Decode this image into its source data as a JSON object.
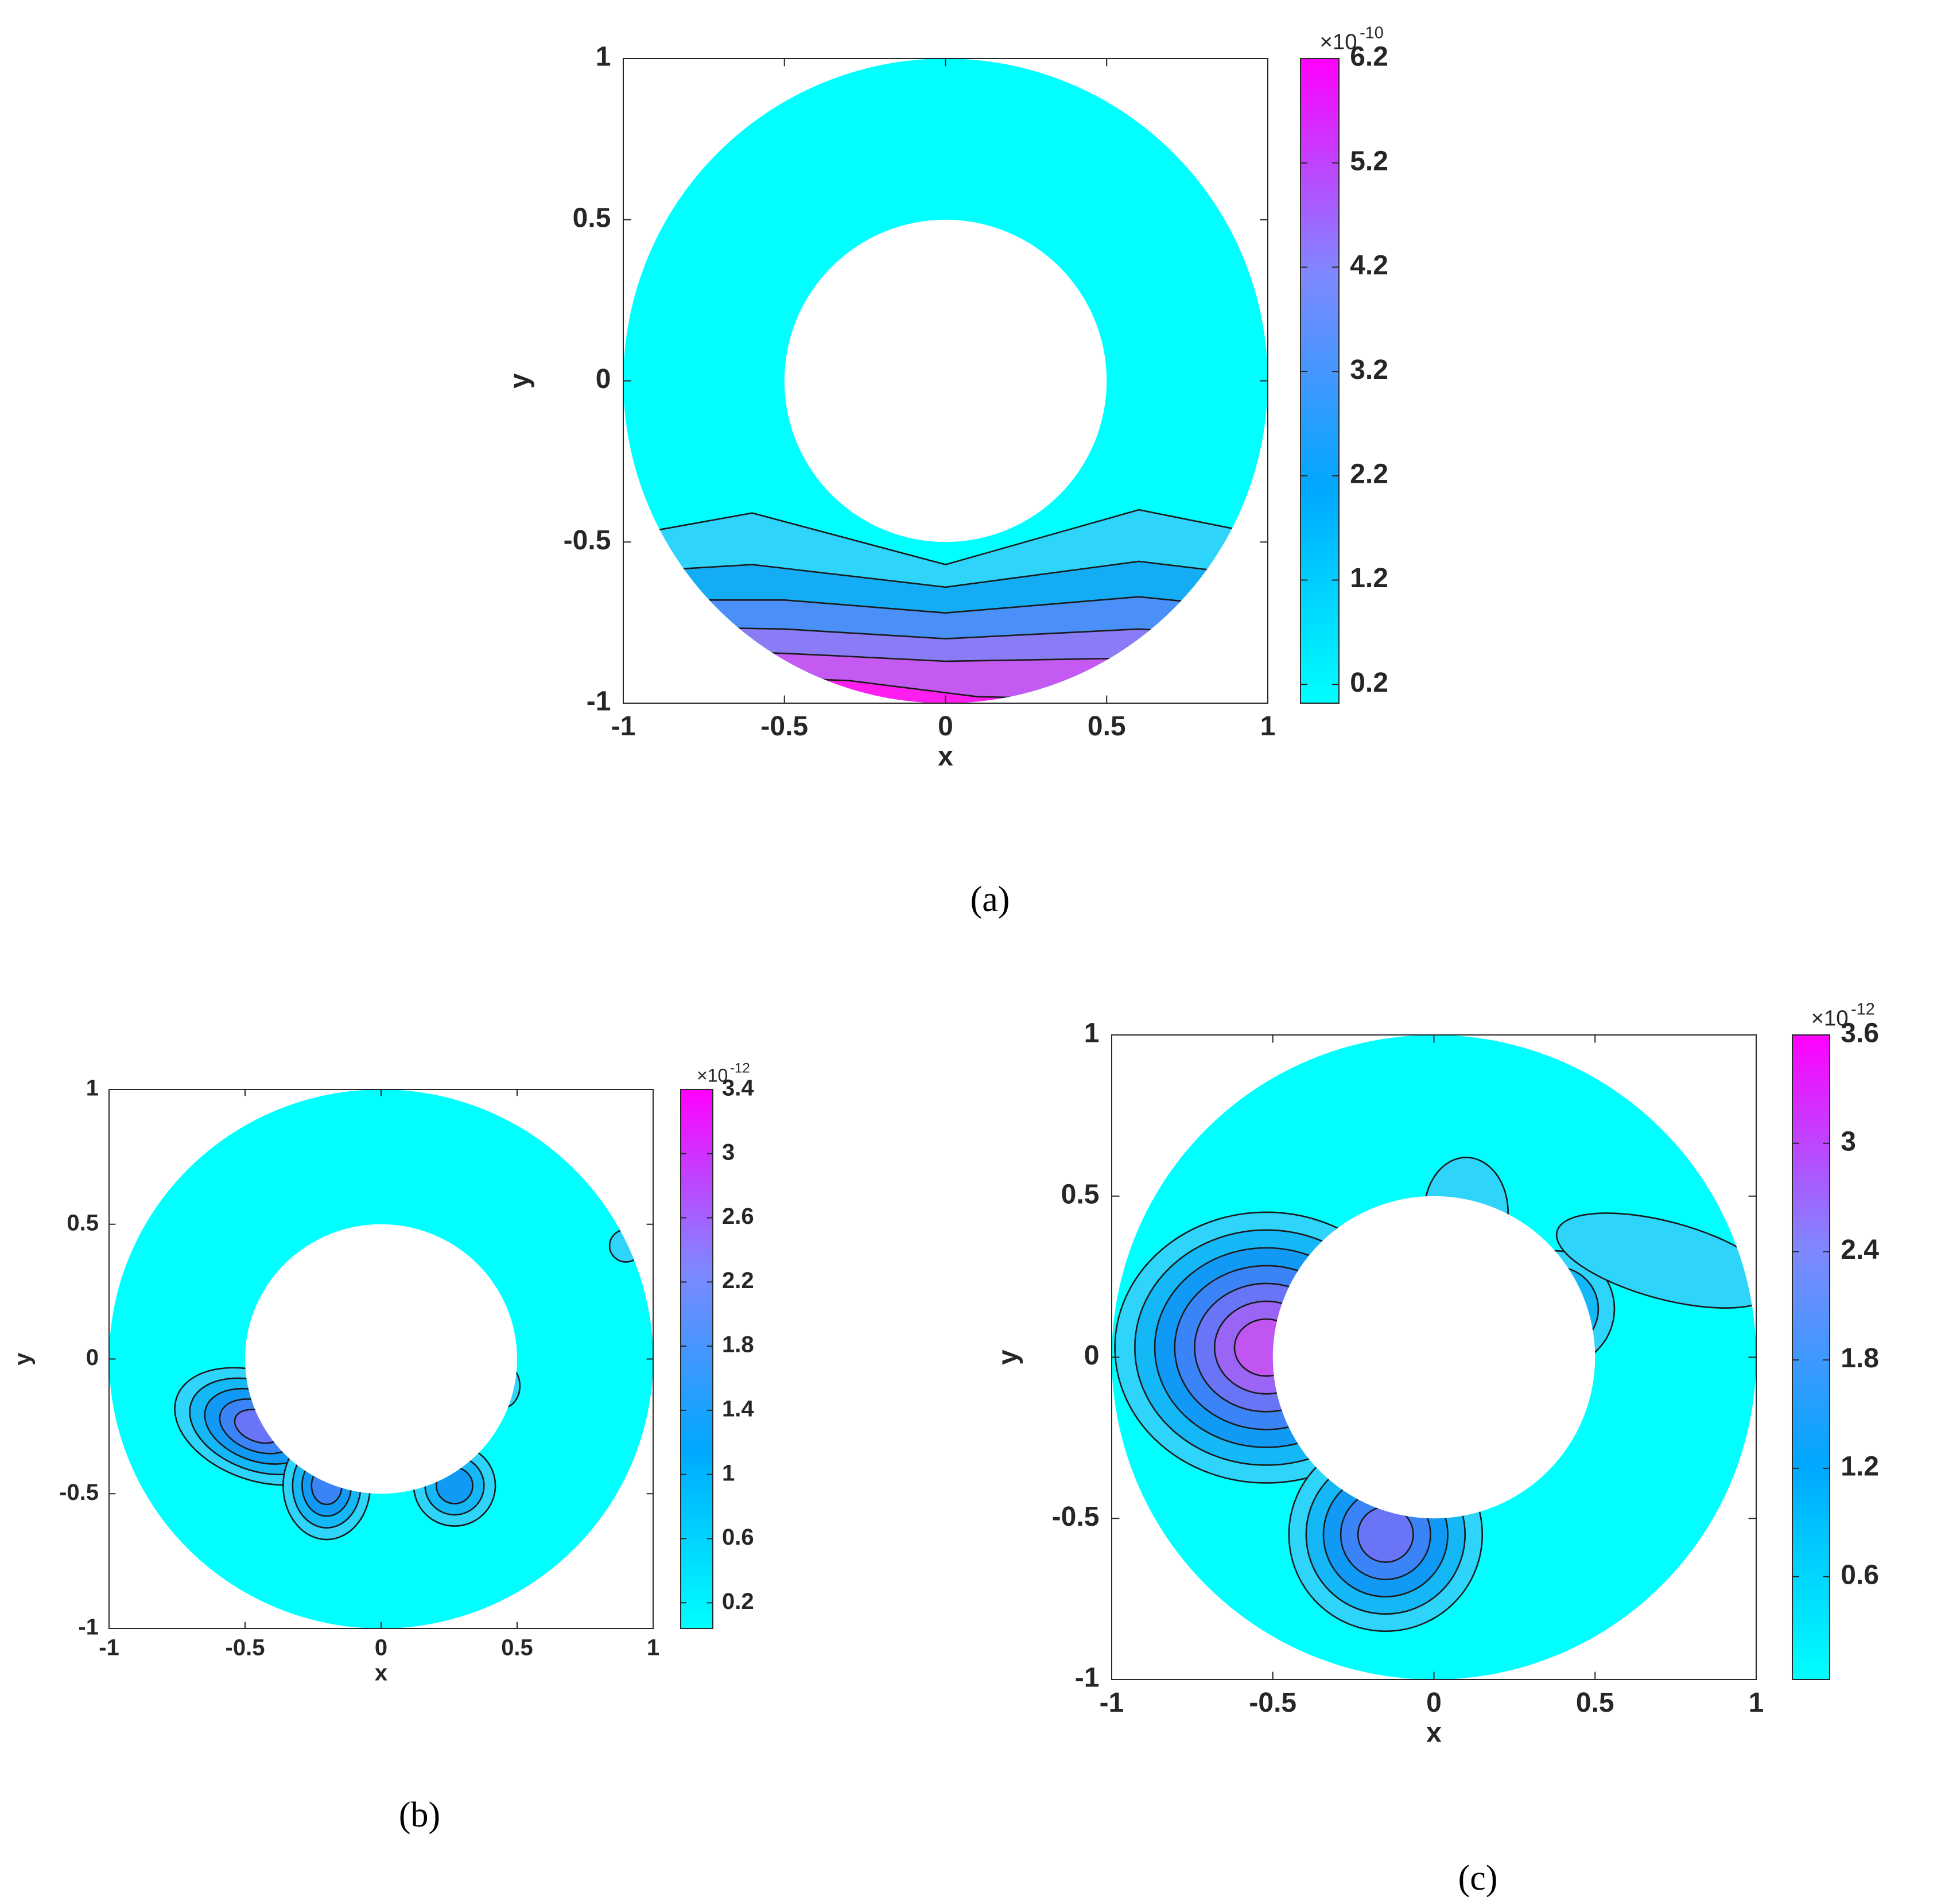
{
  "chart_data": [
    {
      "type": "contour",
      "caption": "(a)",
      "xlabel": "x",
      "ylabel": "y",
      "xlim": [
        -1,
        1
      ],
      "ylim": [
        -1,
        1
      ],
      "xticks": [
        -1,
        -0.5,
        0,
        0.5,
        1
      ],
      "yticks": [
        -1,
        -0.5,
        0,
        0.5,
        1
      ],
      "colorbar": {
        "lim": [
          0.02,
          6.2
        ],
        "ticks": [
          0.2,
          1.2,
          2.2,
          3.2,
          4.2,
          5.2,
          6.2
        ],
        "multiplier": "×10",
        "exponent": "-10",
        "colors": [
          "#00ffff",
          "#00a8ff",
          "#7f88ff",
          "#ff00ff"
        ]
      }
    },
    {
      "type": "contour",
      "caption": "(b)",
      "xlabel": "x",
      "ylabel": "y",
      "xlim": [
        -1,
        1
      ],
      "ylim": [
        -1,
        1
      ],
      "xticks": [
        -1,
        -0.5,
        0,
        0.5,
        1
      ],
      "yticks": [
        -1,
        -0.5,
        0,
        0.5,
        1
      ],
      "colorbar": {
        "lim": [
          0.04,
          3.4
        ],
        "ticks": [
          0.2,
          0.6,
          1,
          1.4,
          1.8,
          2.2,
          2.6,
          3,
          3.4
        ],
        "multiplier": "×10",
        "exponent": "-12",
        "colors": [
          "#00ffff",
          "#00a8ff",
          "#7f88ff",
          "#ff00ff"
        ]
      }
    },
    {
      "type": "contour",
      "caption": "(c)",
      "xlabel": "x",
      "ylabel": "y",
      "xlim": [
        -1,
        1
      ],
      "ylim": [
        -1,
        1
      ],
      "xticks": [
        -1,
        -0.5,
        0,
        0.5,
        1
      ],
      "yticks": [
        -1,
        -0.5,
        0,
        0.5,
        1
      ],
      "colorbar": {
        "lim": [
          0.03,
          3.6
        ],
        "ticks": [
          0.6,
          1.2,
          1.8,
          2.4,
          3,
          3.6
        ],
        "multiplier": "×10",
        "exponent": "-12",
        "colors": [
          "#00ffff",
          "#00a8ff",
          "#7f88ff",
          "#ff00ff"
        ]
      }
    }
  ]
}
